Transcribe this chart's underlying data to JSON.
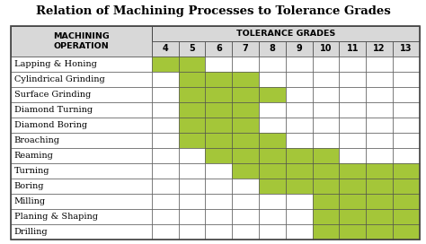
{
  "title": "Relation of Machining Processes to Tolerance Grades",
  "col_header_top": "TOLERANCE GRADES",
  "col_header_left_line1": "MACHINING",
  "col_header_left_line2": "OPERATION",
  "grades": [
    4,
    5,
    6,
    7,
    8,
    9,
    10,
    11,
    12,
    13
  ],
  "operations": [
    "Lapping & Honing",
    "Cylindrical Grinding",
    "Surface Grinding",
    "Diamond Turning",
    "Diamond Boring",
    "Broaching",
    "Reaming",
    "Turning",
    "Boring",
    "Milling",
    "Planing & Shaping",
    "Drilling"
  ],
  "ranges": [
    [
      4,
      5
    ],
    [
      5,
      7
    ],
    [
      5,
      8
    ],
    [
      5,
      7
    ],
    [
      5,
      7
    ],
    [
      5,
      8
    ],
    [
      6,
      10
    ],
    [
      7,
      13
    ],
    [
      8,
      13
    ],
    [
      10,
      13
    ],
    [
      10,
      13
    ],
    [
      10,
      13
    ]
  ],
  "bar_color": "#a4c639",
  "header_bg": "#d8d8d8",
  "border_color": "#444444",
  "title_fontsize": 9.5,
  "label_fontsize": 7.0,
  "header_fontsize": 6.8,
  "grade_fontsize": 7.0,
  "fig_width": 4.74,
  "fig_height": 2.72,
  "dpi": 100
}
